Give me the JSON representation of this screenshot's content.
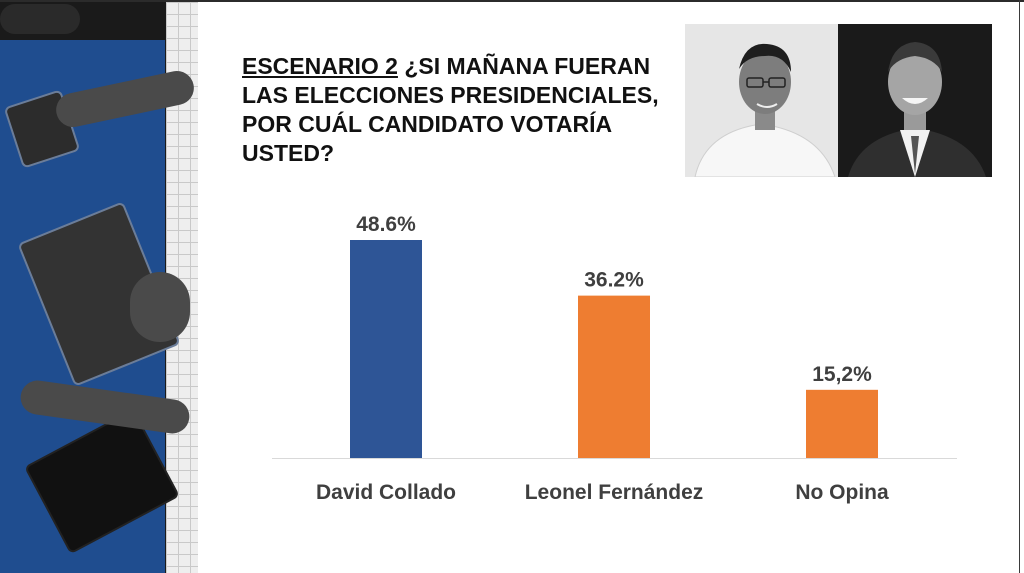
{
  "title": {
    "part1": "ESCENARIO 2",
    "part2": " ¿SI MAÑANA FUERAN LAS ELECCIONES PRESIDENCIALES, POR CUÁL CANDIDATO VOTARÍA USTED?"
  },
  "colors": {
    "blue": "#2e5596",
    "orange": "#ee7d31",
    "label": "#3f3f3f"
  },
  "chart_data": {
    "type": "bar",
    "categories": [
      "David Collado",
      "Leonel Fernández",
      "No Opina"
    ],
    "values": [
      48.6,
      36.2,
      15.2
    ],
    "data_labels": [
      "48.6%",
      "36.2%",
      "15,2%"
    ],
    "bar_colors": [
      "#2e5596",
      "#ee7d31",
      "#ee7d31"
    ],
    "ylim": [
      0,
      50
    ],
    "grid": false,
    "legend": "none"
  }
}
